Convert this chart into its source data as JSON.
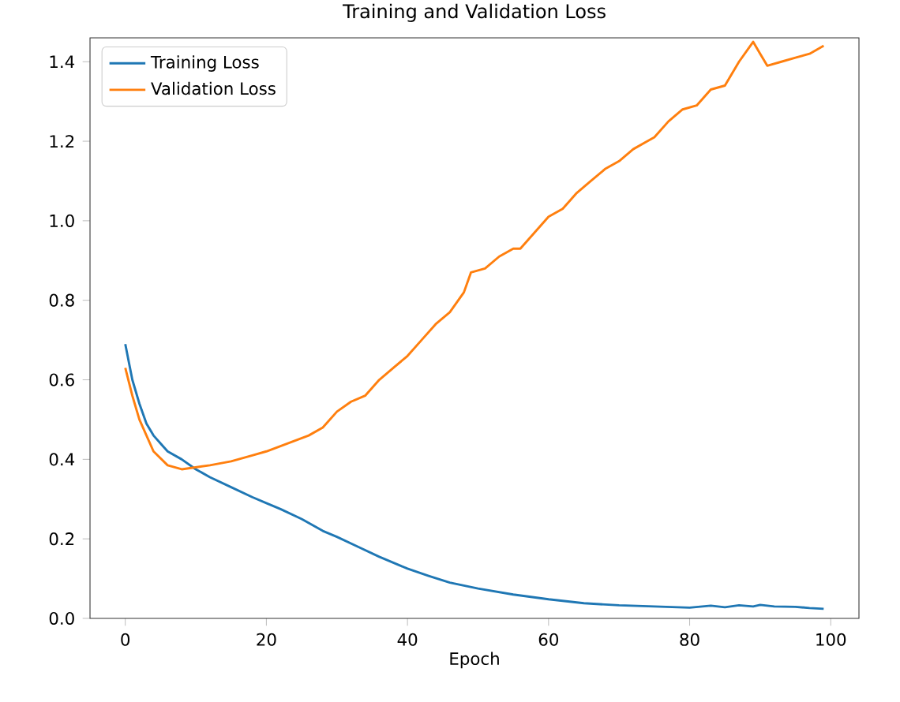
{
  "chart_data": {
    "type": "line",
    "title": "Training and Validation Loss",
    "xlabel": "Epoch",
    "xlim": [
      -5,
      104
    ],
    "ylim": [
      0,
      1.46
    ],
    "xticks": [
      0,
      20,
      40,
      60,
      80,
      100
    ],
    "yticks": [
      {
        "value": 0,
        "label": "0.0"
      },
      {
        "value": 0.2,
        "label": "0.2"
      },
      {
        "value": 0.4,
        "label": "0.4"
      },
      {
        "value": 0.6,
        "label": "0.6"
      },
      {
        "value": 0.8,
        "label": "0.8"
      },
      {
        "value": 1.0,
        "label": "1.0"
      },
      {
        "value": 1.2,
        "label": "1.2"
      },
      {
        "value": 1.4,
        "label": "1.4"
      }
    ],
    "grid": false,
    "legend": "top left",
    "marker": "none",
    "line_style": "solid",
    "series": [
      {
        "name": "Training Loss",
        "color": "#1f77b4",
        "x": [
          0,
          1,
          2,
          3,
          4,
          5,
          6,
          8,
          10,
          12,
          15,
          18,
          20,
          22,
          25,
          28,
          30,
          33,
          36,
          40,
          43,
          46,
          50,
          55,
          60,
          65,
          70,
          75,
          80,
          83,
          85,
          87,
          89,
          90,
          92,
          95,
          97,
          99
        ],
        "values": [
          0.69,
          0.6,
          0.54,
          0.49,
          0.46,
          0.44,
          0.42,
          0.4,
          0.375,
          0.355,
          0.33,
          0.305,
          0.29,
          0.275,
          0.25,
          0.22,
          0.205,
          0.18,
          0.155,
          0.125,
          0.107,
          0.09,
          0.075,
          0.06,
          0.048,
          0.038,
          0.033,
          0.03,
          0.027,
          0.032,
          0.028,
          0.033,
          0.03,
          0.034,
          0.03,
          0.029,
          0.026,
          0.024
        ]
      },
      {
        "name": "Validation Loss",
        "color": "#ff7f0e",
        "x": [
          0,
          1,
          2,
          4,
          6,
          8,
          10,
          12,
          15,
          18,
          20,
          23,
          26,
          28,
          30,
          32,
          34,
          36,
          38,
          40,
          42,
          44,
          46,
          48,
          49,
          51,
          53,
          55,
          56,
          58,
          60,
          62,
          64,
          66,
          68,
          70,
          72,
          74,
          75,
          77,
          79,
          81,
          83,
          85,
          87,
          89,
          90,
          91,
          93,
          95,
          97,
          99
        ],
        "values": [
          0.63,
          0.56,
          0.5,
          0.42,
          0.385,
          0.375,
          0.38,
          0.385,
          0.395,
          0.41,
          0.42,
          0.44,
          0.46,
          0.48,
          0.52,
          0.545,
          0.56,
          0.6,
          0.63,
          0.66,
          0.7,
          0.74,
          0.77,
          0.82,
          0.87,
          0.88,
          0.91,
          0.93,
          0.93,
          0.97,
          1.01,
          1.03,
          1.07,
          1.1,
          1.13,
          1.15,
          1.18,
          1.2,
          1.21,
          1.25,
          1.28,
          1.29,
          1.33,
          1.34,
          1.4,
          1.45,
          1.42,
          1.39,
          1.4,
          1.41,
          1.42,
          1.44
        ]
      }
    ]
  }
}
